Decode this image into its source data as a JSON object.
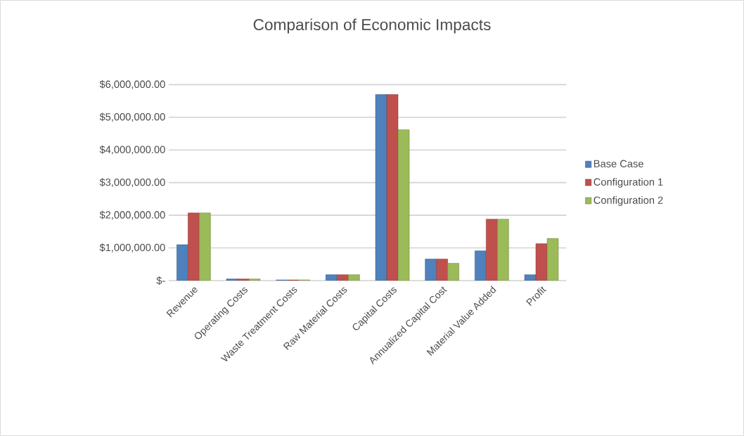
{
  "chart_data": {
    "type": "bar",
    "title": "Comparison of Economic Impacts",
    "categories": [
      "Revenue",
      "Operating Costs",
      "Waste Treatment Costs",
      "Raw Material Costs",
      "Capital Costs",
      "Annualized Capital Cost",
      "Material Value Added",
      "Profit"
    ],
    "series": [
      {
        "name": "Base Case",
        "color": "#4f81bd",
        "values": [
          1100000,
          50000,
          20000,
          180000,
          5700000,
          660000,
          910000,
          180000
        ]
      },
      {
        "name": "Configuration 1",
        "color": "#c0504d",
        "values": [
          2070000,
          50000,
          20000,
          180000,
          5700000,
          660000,
          1880000,
          1130000
        ]
      },
      {
        "name": "Configuration 2",
        "color": "#9bbb59",
        "values": [
          2070000,
          50000,
          20000,
          180000,
          4620000,
          530000,
          1880000,
          1290000
        ]
      }
    ],
    "ylim": [
      0,
      6000000
    ],
    "yticks": [
      {
        "value": 0,
        "label": "$-"
      },
      {
        "value": 1000000,
        "label": "$1,000,000.00"
      },
      {
        "value": 2000000,
        "label": "$2,000,000.00"
      },
      {
        "value": 3000000,
        "label": "$3,000,000.00"
      },
      {
        "value": 4000000,
        "label": "$4,000,000.00"
      },
      {
        "value": 5000000,
        "label": "$5,000,000.00"
      },
      {
        "value": 6000000,
        "label": "$6,000,000.00"
      }
    ],
    "grid": "y",
    "legend": "right"
  }
}
